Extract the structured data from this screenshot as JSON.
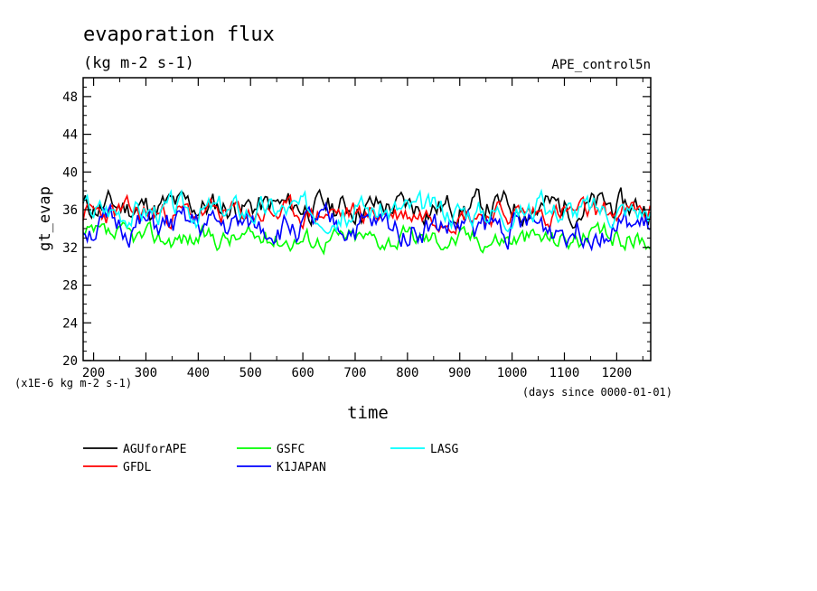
{
  "chart_data": {
    "type": "line",
    "title": "evaporation flux",
    "subtitle": "(kg m-2 s-1)",
    "experiment": "APE_control5n",
    "ylabel": "gt_evap",
    "xlabel": "time",
    "y_scale_note": "(x1E-6 kg m-2 s-1)",
    "x_units_note": "(days since 0000-01-01)",
    "xlim": [
      180,
      1265
    ],
    "ylim": [
      20,
      50
    ],
    "x_ticks": [
      200,
      300,
      400,
      500,
      600,
      700,
      800,
      900,
      1000,
      1100,
      1200
    ],
    "y_ticks": [
      20,
      24,
      28,
      32,
      36,
      40,
      44,
      48
    ],
    "grid": false,
    "legend_position": "bottom",
    "series": [
      {
        "name": "AGUforAPE",
        "color": "#000000",
        "min": 33.0,
        "max": 40.4,
        "base": 36.3,
        "amp": 1.7,
        "seed": 11
      },
      {
        "name": "GFDL",
        "color": "#ff0000",
        "min": 32.5,
        "max": 38.6,
        "base": 35.6,
        "amp": 1.4,
        "seed": 23
      },
      {
        "name": "GSFC",
        "color": "#00ff00",
        "min": 30.1,
        "max": 36.0,
        "base": 33.0,
        "amp": 1.3,
        "seed": 37
      },
      {
        "name": "K1JAPAN",
        "color": "#0000ff",
        "min": 30.3,
        "max": 38.8,
        "base": 34.2,
        "amp": 1.8,
        "seed": 51
      },
      {
        "name": "LASG",
        "color": "#00ffff",
        "min": 32.6,
        "max": 40.6,
        "base": 36.0,
        "amp": 1.6,
        "seed": 67
      }
    ]
  }
}
